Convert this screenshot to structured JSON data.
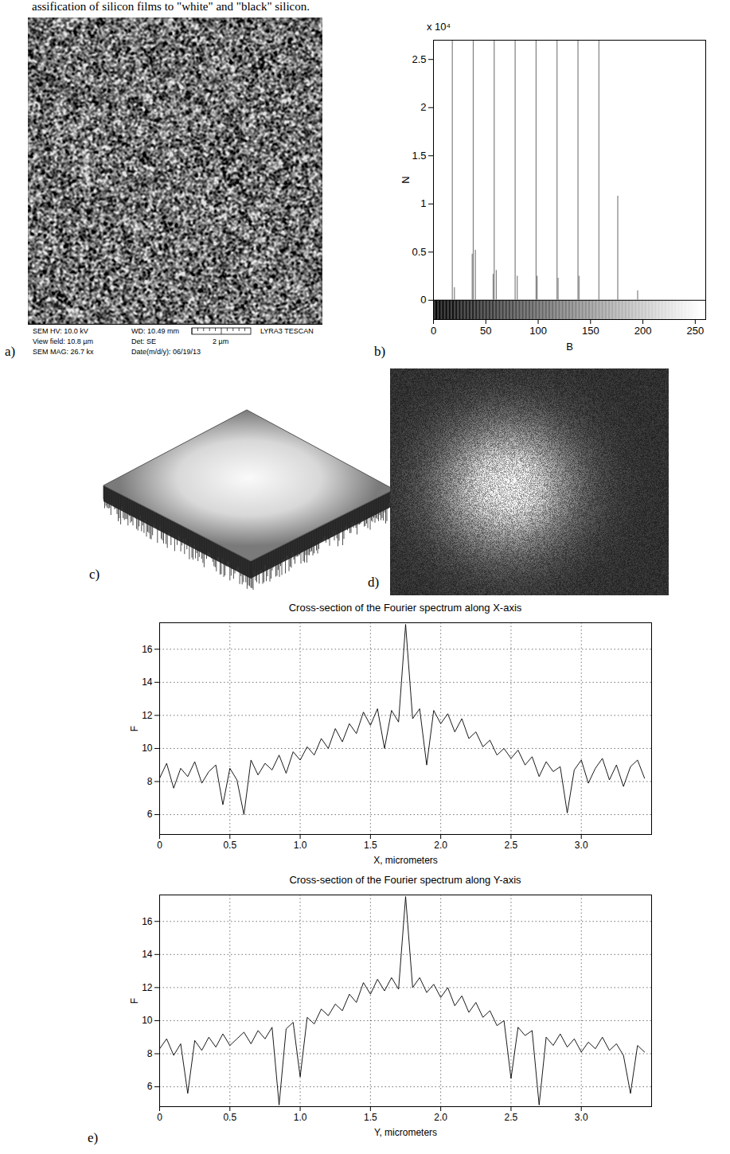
{
  "caption": "assification of silicon films to \"white\" and \"black\" silicon.",
  "panels": [
    "a)",
    "b)",
    "c)",
    "d)",
    "e)"
  ],
  "sem_info": {
    "row1": [
      "SEM HV: 10.0 kV",
      "WD: 10.49 mm",
      "LYRA3 TESCAN"
    ],
    "row2": [
      "View field: 10.8 µm",
      "Det: SE",
      "2 µm"
    ],
    "row3": [
      "SEM MAG: 26.7 kx",
      "Date(m/d/y): 06/19/13"
    ]
  },
  "chart_data": [
    {
      "type": "bar",
      "xlabel": "B",
      "ylabel": "N",
      "annotations": [
        "x 10⁴"
      ],
      "x": [
        18,
        20,
        37,
        38,
        40,
        57,
        58,
        60,
        78,
        80,
        98,
        99,
        118,
        119,
        138,
        139,
        158,
        176,
        195
      ],
      "values": [
        2.7,
        0.13,
        0.48,
        2.7,
        0.52,
        0.27,
        2.7,
        0.31,
        2.7,
        0.25,
        2.7,
        0.25,
        2.7,
        0.23,
        2.7,
        0.25,
        2.7,
        1.08,
        0.1
      ],
      "color": "#808080",
      "xlim": [
        0,
        260
      ],
      "xticks": [
        0,
        50,
        100,
        150,
        200,
        250
      ],
      "ylim": [
        -0.2,
        2.7
      ],
      "yticks": [
        0,
        0.5,
        1,
        1.5,
        2,
        2.5
      ],
      "colorbar": {
        "range": [
          0,
          255
        ]
      },
      "grid": false
    },
    {
      "type": "line",
      "title": "Cross-section of the Fourier spectrum along X-axis",
      "xlabel": "X, micrometers",
      "ylabel": "F",
      "x": [
        0,
        0.05,
        0.1,
        0.15,
        0.2,
        0.25,
        0.3,
        0.35,
        0.4,
        0.45,
        0.5,
        0.55,
        0.6,
        0.65,
        0.7,
        0.75,
        0.8,
        0.85,
        0.9,
        0.95,
        1,
        1.05,
        1.1,
        1.15,
        1.2,
        1.25,
        1.3,
        1.35,
        1.4,
        1.45,
        1.5,
        1.55,
        1.6,
        1.65,
        1.7,
        1.75,
        1.8,
        1.85,
        1.9,
        1.95,
        2,
        2.05,
        2.1,
        2.15,
        2.2,
        2.25,
        2.3,
        2.35,
        2.4,
        2.45,
        2.5,
        2.55,
        2.6,
        2.65,
        2.7,
        2.75,
        2.8,
        2.85,
        2.9,
        2.95,
        3,
        3.05,
        3.1,
        3.15,
        3.2,
        3.25,
        3.3,
        3.35,
        3.4,
        3.45
      ],
      "values": [
        8.2,
        9.1,
        7.6,
        8.8,
        8.3,
        9.2,
        7.9,
        8.6,
        9.0,
        6.6,
        8.8,
        8.1,
        6.0,
        9.3,
        8.4,
        9.1,
        8.7,
        9.6,
        8.5,
        9.8,
        9.3,
        10.1,
        9.6,
        10.6,
        10.0,
        11.2,
        10.4,
        11.5,
        10.9,
        12.2,
        11.4,
        12.4,
        10.0,
        12.3,
        11.6,
        17.5,
        11.8,
        12.4,
        9.0,
        12.3,
        11.5,
        12.1,
        11.0,
        11.8,
        10.6,
        11.0,
        10.1,
        10.5,
        9.6,
        10.0,
        9.4,
        9.9,
        9.0,
        9.5,
        8.3,
        9.2,
        8.6,
        8.9,
        6.1,
        8.7,
        9.3,
        7.9,
        8.8,
        9.4,
        8.1,
        9.0,
        7.7,
        8.9,
        9.3,
        8.2
      ],
      "color": "#000000",
      "xlim": [
        0,
        3.5
      ],
      "xticks": [
        0,
        0.5,
        {
          "value": 1,
          "label": "1.0"
        },
        1.5,
        {
          "value": 2,
          "label": "2.0"
        },
        2.5,
        {
          "value": 3,
          "label": "3.0"
        }
      ],
      "ylim": [
        4.8,
        17.6
      ],
      "yticks": [
        6,
        8,
        10,
        12,
        14,
        16
      ],
      "grid": true
    },
    {
      "type": "line",
      "title": "Cross-section of the Fourier spectrum along Y-axis",
      "xlabel": "Y, micrometers",
      "ylabel": "F",
      "x": [
        0,
        0.05,
        0.1,
        0.15,
        0.2,
        0.25,
        0.3,
        0.35,
        0.4,
        0.45,
        0.5,
        0.55,
        0.6,
        0.65,
        0.7,
        0.75,
        0.8,
        0.85,
        0.9,
        0.95,
        1,
        1.05,
        1.1,
        1.15,
        1.2,
        1.25,
        1.3,
        1.35,
        1.4,
        1.45,
        1.5,
        1.55,
        1.6,
        1.65,
        1.7,
        1.75,
        1.8,
        1.85,
        1.9,
        1.95,
        2,
        2.05,
        2.1,
        2.15,
        2.2,
        2.25,
        2.3,
        2.35,
        2.4,
        2.45,
        2.5,
        2.55,
        2.6,
        2.65,
        2.7,
        2.75,
        2.8,
        2.85,
        2.9,
        2.95,
        3,
        3.05,
        3.1,
        3.15,
        3.2,
        3.25,
        3.3,
        3.35,
        3.4,
        3.45
      ],
      "values": [
        8.3,
        8.9,
        7.9,
        8.6,
        5.6,
        8.8,
        8.2,
        9.0,
        8.4,
        9.2,
        8.5,
        8.9,
        9.3,
        8.6,
        9.4,
        8.9,
        9.6,
        4.9,
        9.5,
        9.9,
        6.6,
        10.2,
        9.8,
        10.7,
        10.3,
        11.0,
        10.6,
        11.6,
        11.1,
        12.3,
        11.6,
        12.5,
        11.8,
        12.6,
        11.9,
        17.5,
        12.0,
        12.6,
        11.7,
        12.2,
        11.4,
        12.0,
        10.9,
        11.5,
        10.5,
        11.1,
        10.2,
        10.6,
        9.7,
        10.0,
        6.5,
        9.6,
        9.1,
        9.4,
        4.9,
        9.0,
        8.5,
        9.2,
        8.4,
        8.9,
        8.1,
        8.7,
        8.3,
        9.0,
        8.2,
        8.6,
        7.9,
        5.6,
        8.5,
        8.1
      ],
      "color": "#000000",
      "xlim": [
        0,
        3.5
      ],
      "xticks": [
        0,
        0.5,
        {
          "value": 1,
          "label": "1.0"
        },
        1.5,
        {
          "value": 2,
          "label": "2.0"
        },
        2.5,
        {
          "value": 3,
          "label": "3.0"
        }
      ],
      "ylim": [
        4.8,
        17.6
      ],
      "yticks": [
        6,
        8,
        10,
        12,
        14,
        16
      ],
      "grid": true
    }
  ]
}
